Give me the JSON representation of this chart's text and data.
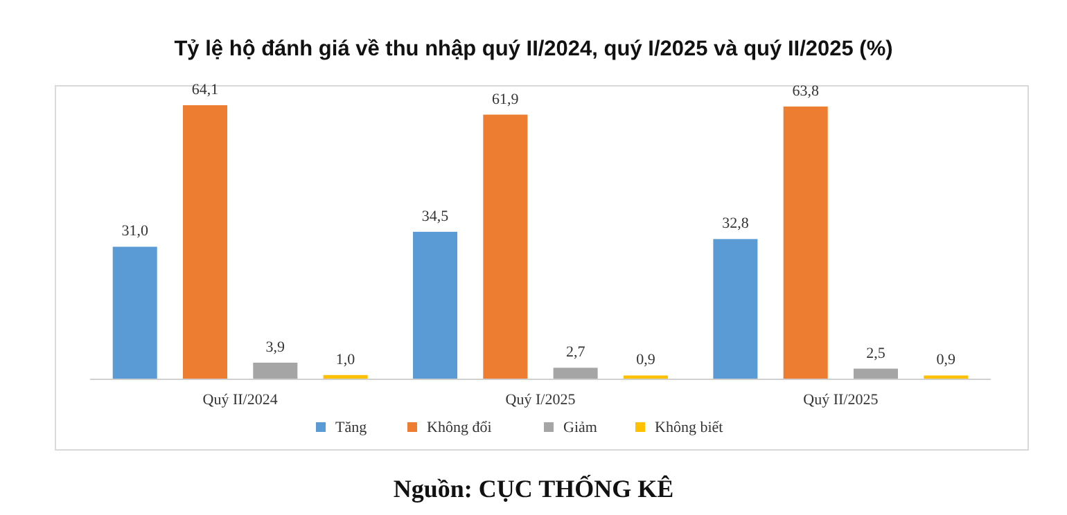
{
  "chart_data": {
    "type": "bar",
    "title": "Tỷ lệ hộ đánh giá về thu nhập quý II/2024, quý I/2025 và quý II/2025 (%)",
    "categories": [
      "Quý II/2024",
      "Quý I/2025",
      "Quý II/2025"
    ],
    "series": [
      {
        "name": "Tăng",
        "color": "#5b9bd5",
        "values": [
          31.0,
          34.5,
          32.8
        ],
        "value_labels": [
          "31,0",
          "34,5",
          "32,8"
        ]
      },
      {
        "name": "Không đổi",
        "color": "#ed7d31",
        "values": [
          64.1,
          61.9,
          63.8
        ],
        "value_labels": [
          "64,1",
          "61,9",
          "63,8"
        ]
      },
      {
        "name": "Giảm",
        "color": "#a5a5a5",
        "values": [
          3.9,
          2.7,
          2.5
        ],
        "value_labels": [
          "3,9",
          "2,7",
          "2,5"
        ]
      },
      {
        "name": "Không biết",
        "color": "#ffc000",
        "values": [
          1.0,
          0.9,
          0.9
        ],
        "value_labels": [
          "1,0",
          "0,9",
          "0,9"
        ]
      }
    ],
    "legend": "bottom",
    "annotations": [
      "Nguồn: CỤC THỐNG KÊ"
    ]
  }
}
